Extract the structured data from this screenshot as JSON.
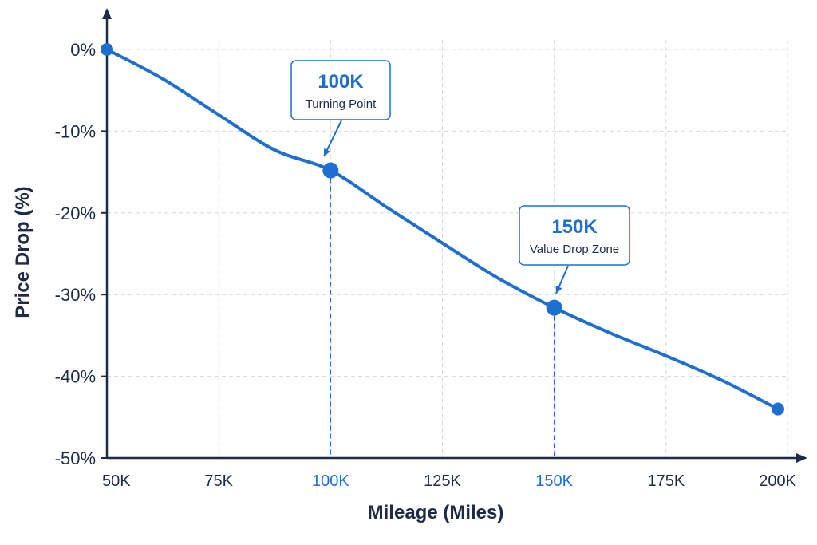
{
  "chart_data": {
    "type": "line",
    "x": [
      50000,
      100000,
      150000,
      200000
    ],
    "xlim": [
      50000,
      200000
    ],
    "ylim": [
      -50,
      0
    ],
    "y_ticks": [
      0,
      -10,
      -20,
      -30,
      -40,
      -50
    ],
    "y_tick_labels": [
      "0%",
      "-10%",
      "-20%",
      "-30%",
      "-40%",
      "-50%"
    ],
    "x_ticks": [
      50000,
      75000,
      100000,
      125000,
      150000,
      175000,
      200000
    ],
    "x_tick_labels": [
      "50K",
      "75K",
      "100K",
      "125K",
      "150K",
      "175K",
      "200K"
    ],
    "x_tick_highlight": [
      false,
      false,
      true,
      false,
      true,
      false,
      false
    ],
    "xlabel": "Mileage (Miles)",
    "ylabel": "Price Drop (%)",
    "grid": true,
    "series": [
      {
        "values": [
          0,
          -14.8,
          -31.6,
          -44
        ]
      }
    ],
    "curve": [
      [
        50000,
        0
      ],
      [
        62500,
        -3.6
      ],
      [
        75000,
        -8
      ],
      [
        87500,
        -12.3
      ],
      [
        100000,
        -14.8
      ],
      [
        112500,
        -19.3
      ],
      [
        125000,
        -23.7
      ],
      [
        137500,
        -28
      ],
      [
        150000,
        -31.6
      ],
      [
        162500,
        -34.7
      ],
      [
        175000,
        -37.5
      ],
      [
        187500,
        -40.5
      ],
      [
        200000,
        -44
      ]
    ],
    "annotations": [
      {
        "x": 100000,
        "y": -14.8,
        "title": "100K",
        "subtitle": "Turning Point"
      },
      {
        "x": 150000,
        "y": -31.6,
        "title": "150K",
        "subtitle": "Value Drop Zone"
      }
    ],
    "colors": {
      "line": "#1f6fd1",
      "axis": "#1f2a44",
      "grid": "#d7d7d7",
      "highlight": "#1f6fd1"
    }
  }
}
